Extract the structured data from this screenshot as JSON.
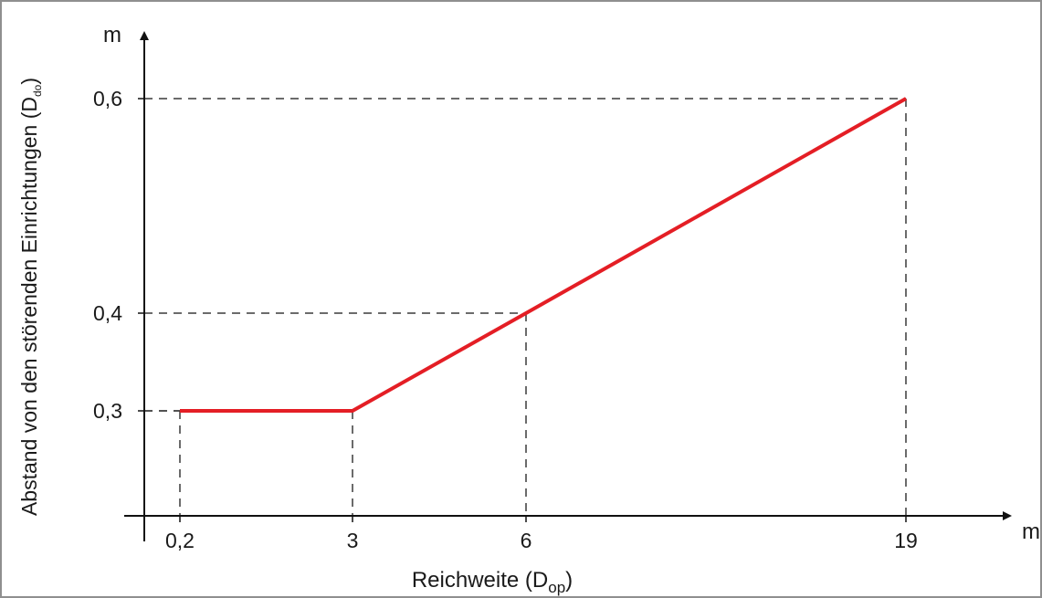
{
  "chart_data": {
    "type": "line",
    "title": "",
    "xlabel": "Reichweite (D",
    "xlabel_sub": "op",
    "xlabel_close": ")",
    "ylabel": "Abstand von den störenden Einrichtungen (D",
    "ylabel_sub": "do",
    "ylabel_close": ")",
    "x_unit": "m",
    "y_unit": "m",
    "x_ticks": [
      {
        "value": 0.2,
        "label": "0,2"
      },
      {
        "value": 3,
        "label": "3"
      },
      {
        "value": 6,
        "label": "6"
      },
      {
        "value": 19,
        "label": "19"
      }
    ],
    "y_ticks": [
      {
        "value": 0.3,
        "label": "0,3"
      },
      {
        "value": 0.4,
        "label": "0,4"
      },
      {
        "value": 0.6,
        "label": "0,6"
      }
    ],
    "series": [
      {
        "color": "#e41e25",
        "points": [
          {
            "x": 0.2,
            "y": 0.3
          },
          {
            "x": 3,
            "y": 0.3
          },
          {
            "x": 6,
            "y": 0.4
          },
          {
            "x": 19,
            "y": 0.6
          }
        ]
      }
    ],
    "grid": false,
    "guide_lines": "dashed"
  }
}
